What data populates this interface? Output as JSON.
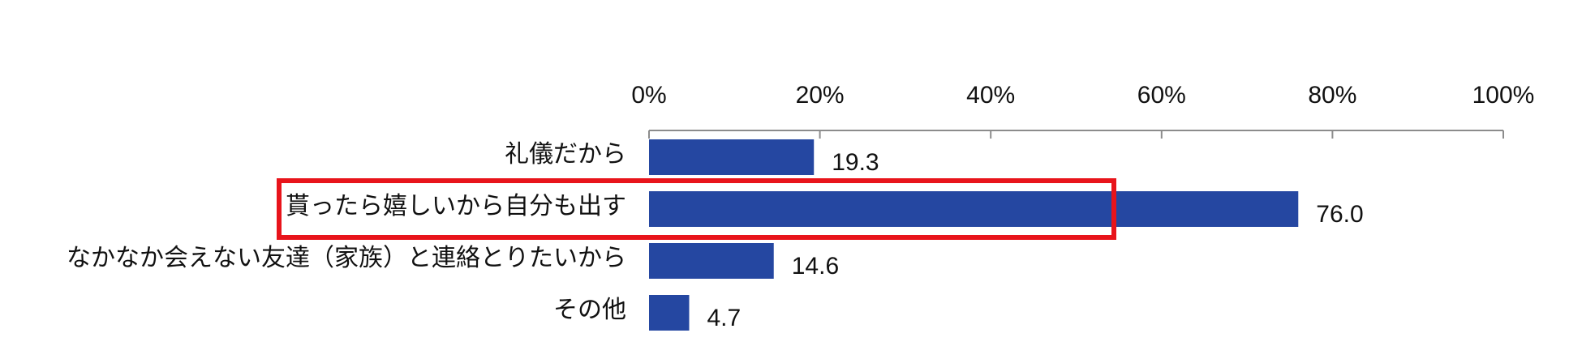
{
  "chart_data": {
    "type": "bar",
    "orientation": "horizontal",
    "categories": [
      "礼儀だから",
      "貰ったら嬉しいから自分も出す",
      "なかなか会えない友達（家族）と連絡とりたいから",
      "その他"
    ],
    "values": [
      19.3,
      76.0,
      14.6,
      4.7
    ],
    "value_labels": [
      "19.3",
      "76.0",
      "14.6",
      "4.7"
    ],
    "xlim": [
      0,
      100
    ],
    "x_ticks": [
      0,
      20,
      40,
      60,
      80,
      100
    ],
    "x_tick_labels": [
      "0%",
      "20%",
      "40%",
      "60%",
      "80%",
      "100%"
    ],
    "axis_position": "top",
    "grid": false,
    "bar_color": "#2547A1",
    "highlight": {
      "category_index": 1,
      "color": "#E8141B"
    }
  }
}
